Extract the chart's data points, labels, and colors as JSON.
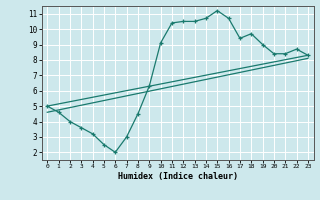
{
  "xlabel": "Humidex (Indice chaleur)",
  "bg_color": "#cde8ec",
  "line_color": "#1a7a6e",
  "grid_color": "#ffffff",
  "xlim": [
    -0.5,
    23.5
  ],
  "ylim": [
    1.5,
    11.5
  ],
  "xticks": [
    0,
    1,
    2,
    3,
    4,
    5,
    6,
    7,
    8,
    9,
    10,
    11,
    12,
    13,
    14,
    15,
    16,
    17,
    18,
    19,
    20,
    21,
    22,
    23
  ],
  "yticks": [
    2,
    3,
    4,
    5,
    6,
    7,
    8,
    9,
    10,
    11
  ],
  "curve_x": [
    0,
    1,
    2,
    3,
    4,
    5,
    6,
    7,
    8,
    9,
    10,
    11,
    12,
    13,
    14,
    15,
    16,
    17,
    18,
    19,
    20,
    21,
    22,
    23
  ],
  "curve_y": [
    5.0,
    4.6,
    4.0,
    3.6,
    3.2,
    2.5,
    2.0,
    3.0,
    4.5,
    6.3,
    9.1,
    10.4,
    10.5,
    10.5,
    10.7,
    11.2,
    10.7,
    9.4,
    9.7,
    9.0,
    8.4,
    8.4,
    8.7,
    8.3
  ],
  "trend1_x": [
    0,
    23
  ],
  "trend1_y": [
    5.0,
    8.3
  ],
  "trend2_x": [
    0,
    23
  ],
  "trend2_y": [
    4.6,
    8.1
  ]
}
